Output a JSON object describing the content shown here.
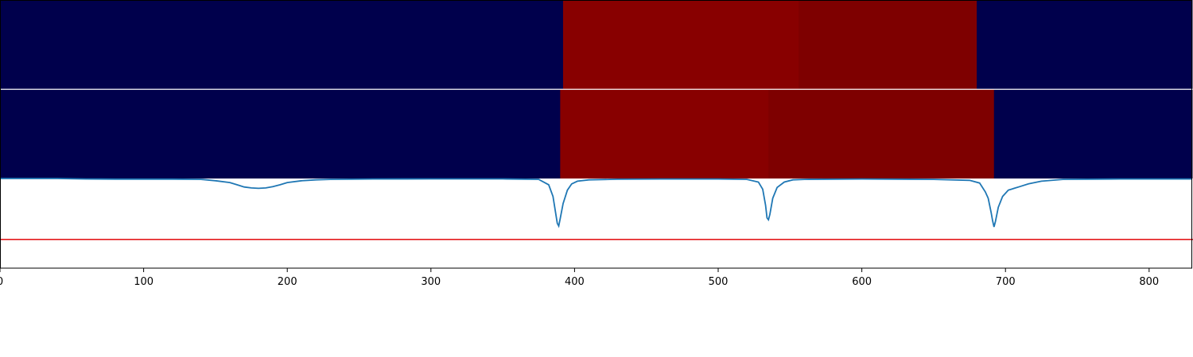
{
  "chart_data": {
    "type": "heatmap",
    "x_axis": {
      "range": [
        0,
        830
      ],
      "ticks": [
        0,
        100,
        200,
        300,
        400,
        500,
        600,
        700,
        800
      ],
      "tick_labels": [
        "0",
        "100",
        "200",
        "300",
        "400",
        "500",
        "600",
        "700",
        "800"
      ]
    },
    "rows": [
      {
        "segments": [
          {
            "x0": 0,
            "x1": 392,
            "level": "low"
          },
          {
            "x0": 392,
            "x1": 556,
            "level": "high"
          },
          {
            "x0": 556,
            "x1": 680,
            "level": "mid-high"
          },
          {
            "x0": 680,
            "x1": 830,
            "level": "low"
          }
        ]
      },
      {
        "segments": [
          {
            "x0": 0,
            "x1": 390,
            "level": "low"
          },
          {
            "x0": 390,
            "x1": 535,
            "level": "high"
          },
          {
            "x0": 535,
            "x1": 692,
            "level": "mid-high"
          },
          {
            "x0": 692,
            "x1": 830,
            "level": "low"
          }
        ]
      }
    ],
    "colors": {
      "low": "#00004c",
      "high": "#880000",
      "mid-high": "#7e0000"
    },
    "line_panel": {
      "y_range": [
        0,
        1
      ],
      "threshold": {
        "y": 0.32,
        "color": "#e41a1c"
      },
      "line_color": "#1f77b4",
      "series": {
        "x": [
          0,
          20,
          40,
          60,
          80,
          100,
          120,
          140,
          150,
          160,
          165,
          170,
          175,
          180,
          185,
          190,
          195,
          200,
          210,
          220,
          230,
          260,
          300,
          350,
          375,
          382,
          385,
          387,
          388,
          389,
          390,
          392,
          395,
          398,
          402,
          410,
          430,
          460,
          500,
          520,
          528,
          531,
          533,
          534,
          535,
          536,
          538,
          541,
          546,
          552,
          560,
          600,
          650,
          675,
          682,
          686,
          688,
          690,
          691,
          692,
          693,
          695,
          698,
          702,
          706,
          710,
          716,
          725,
          740,
          780,
          830
        ],
        "y": [
          1,
          1,
          1,
          0.995,
          0.993,
          0.993,
          0.993,
          0.99,
          0.975,
          0.955,
          0.93,
          0.905,
          0.895,
          0.89,
          0.895,
          0.91,
          0.93,
          0.955,
          0.975,
          0.985,
          0.99,
          0.995,
          0.996,
          0.996,
          0.99,
          0.93,
          0.8,
          0.6,
          0.5,
          0.47,
          0.55,
          0.72,
          0.87,
          0.94,
          0.97,
          0.985,
          0.992,
          0.995,
          0.995,
          0.99,
          0.96,
          0.88,
          0.7,
          0.56,
          0.54,
          0.6,
          0.78,
          0.9,
          0.96,
          0.985,
          0.99,
          0.995,
          0.99,
          0.98,
          0.95,
          0.85,
          0.78,
          0.62,
          0.53,
          0.46,
          0.52,
          0.68,
          0.8,
          0.87,
          0.89,
          0.91,
          0.94,
          0.97,
          0.99,
          0.995,
          0.995
        ]
      }
    }
  }
}
